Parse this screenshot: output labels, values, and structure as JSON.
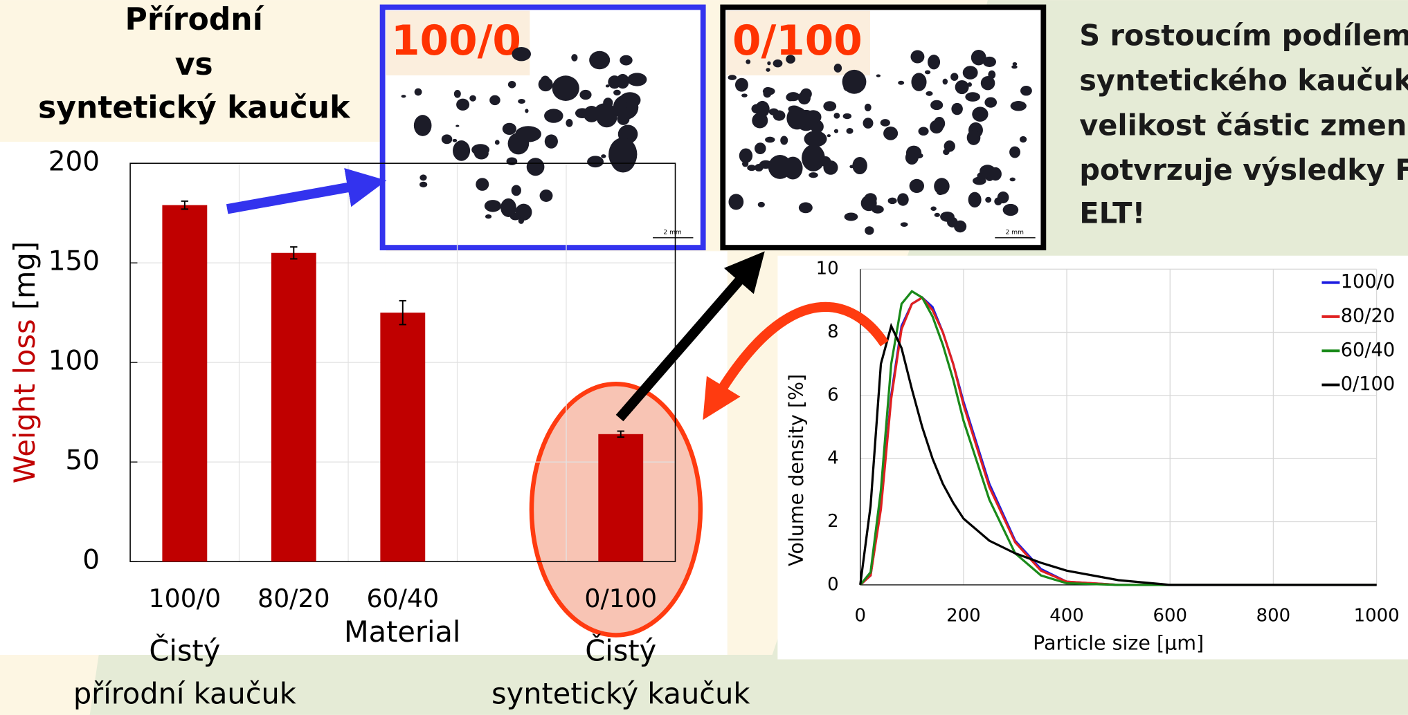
{
  "title_lines": [
    "Přírodní",
    "vs",
    "syntetický kaučuk"
  ],
  "note_lines": [
    "S rostoucím podílem",
    "syntetického kaučuku",
    "velikost částic zmenšu",
    "potvrzuje výsledky FT",
    "ELT!"
  ],
  "image_labels": [
    "100/0",
    "0/100"
  ],
  "scale_bar_label": "2 mm",
  "chart_data": [
    {
      "type": "bar",
      "categories": [
        "100/0",
        "80/20",
        "60/40",
        null,
        "0/100"
      ],
      "values": [
        179,
        155,
        125,
        null,
        64
      ],
      "errors": [
        2,
        3,
        6,
        null,
        1.5
      ],
      "color": "#c00000",
      "ylim": [
        0,
        200
      ],
      "yticks": [
        0,
        50,
        100,
        150,
        200
      ],
      "grid": true,
      "ylabel": "Weight loss",
      "ylabel_unit": "[mg]",
      "xlabel": "Material",
      "category_notes": [
        {
          "category": "100/0",
          "lines": [
            "Čistý",
            "přírodní kaučuk"
          ]
        },
        {
          "category": "0/100",
          "lines": [
            "Čistý",
            "syntetický kaučuk"
          ]
        }
      ]
    },
    {
      "type": "line",
      "x": [
        0,
        20,
        40,
        60,
        80,
        100,
        120,
        140,
        160,
        180,
        200,
        250,
        300,
        350,
        400,
        500,
        600,
        800,
        1000
      ],
      "series": [
        {
          "name": "100/0",
          "color": "#1a1ae0",
          "values": [
            0,
            0.3,
            2.5,
            6,
            8.2,
            8.9,
            9.1,
            8.8,
            8.0,
            7.0,
            5.8,
            3.2,
            1.4,
            0.5,
            0.1,
            0,
            0,
            0,
            0
          ]
        },
        {
          "name": "80/20",
          "color": "#e02020",
          "values": [
            0,
            0.3,
            2.4,
            5.9,
            8.1,
            8.9,
            9.1,
            8.7,
            8.0,
            7.0,
            5.7,
            3.1,
            1.35,
            0.45,
            0.1,
            0,
            0,
            0,
            0
          ]
        },
        {
          "name": "60/40",
          "color": "#1a8a1a",
          "values": [
            0,
            0.4,
            3.0,
            7.0,
            8.9,
            9.3,
            9.1,
            8.5,
            7.6,
            6.5,
            5.2,
            2.7,
            1.0,
            0.3,
            0.05,
            0,
            0,
            0,
            0
          ]
        },
        {
          "name": "0/100",
          "color": "#000000",
          "values": [
            0,
            2.5,
            7.0,
            8.2,
            7.5,
            6.2,
            5.0,
            4.0,
            3.2,
            2.6,
            2.1,
            1.4,
            1.0,
            0.7,
            0.45,
            0.15,
            0,
            0,
            0
          ]
        }
      ],
      "xlim": [
        0,
        1000
      ],
      "xticks": [
        0,
        200,
        400,
        600,
        800,
        1000
      ],
      "ylim": [
        0,
        10
      ],
      "yticks": [
        0,
        2,
        4,
        6,
        8,
        10
      ],
      "grid": true,
      "xlabel": "Particle size [μm]",
      "ylabel": "Volume density [%]",
      "legend": "right"
    }
  ]
}
